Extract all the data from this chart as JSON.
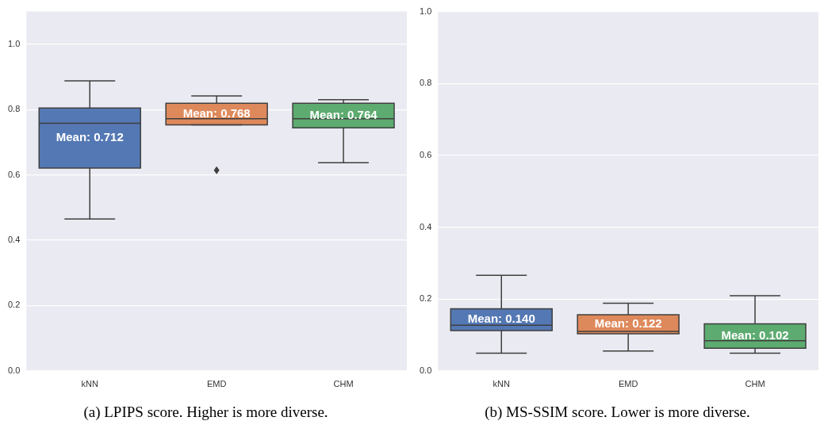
{
  "chart_data": [
    {
      "type": "box",
      "categories": [
        "kNN",
        "EMD",
        "CHM"
      ],
      "colors": [
        "#4c72b0",
        "#dd8452",
        "#55a868"
      ],
      "boxes": [
        {
          "low": 0.465,
          "q1": 0.621,
          "median": 0.758,
          "q3": 0.805,
          "high": 0.888
        },
        {
          "low": 0.753,
          "q1": 0.753,
          "median": 0.772,
          "q3": 0.819,
          "high": 0.842,
          "outliers": [
            0.614
          ]
        },
        {
          "low": 0.637,
          "q1": 0.744,
          "median": 0.772,
          "q3": 0.819,
          "high": 0.83
        }
      ],
      "ylim": [
        0,
        1.1
      ],
      "yticks": [
        {
          "value": 0,
          "label": "0.0"
        },
        {
          "value": 0.2,
          "label": "0.2"
        },
        {
          "value": 0.4,
          "label": "0.4"
        },
        {
          "value": 0.6,
          "label": "0.6"
        },
        {
          "value": 0.8,
          "label": "0.8"
        },
        {
          "value": 1,
          "label": "1.0"
        }
      ],
      "grid": "y",
      "legend": false,
      "annotations": [
        "Mean: 0.712",
        "Mean: 0.768",
        "Mean: 0.764",
        "(a) LPIPS score. Higher is more diverse."
      ]
    },
    {
      "type": "box",
      "categories": [
        "kNN",
        "EMD",
        "CHM"
      ],
      "colors": [
        "#4c72b0",
        "#dd8452",
        "#55a868"
      ],
      "boxes": [
        {
          "low": 0.049,
          "q1": 0.112,
          "median": 0.127,
          "q3": 0.173,
          "high": 0.266
        },
        {
          "low": 0.055,
          "q1": 0.103,
          "median": 0.11,
          "q3": 0.156,
          "high": 0.188
        },
        {
          "low": 0.049,
          "q1": 0.063,
          "median": 0.084,
          "q3": 0.131,
          "high": 0.209
        }
      ],
      "ylim": [
        0,
        1
      ],
      "yticks": [
        {
          "value": 0,
          "label": "0.0"
        },
        {
          "value": 0.2,
          "label": "0.2"
        },
        {
          "value": 0.4,
          "label": "0.4"
        },
        {
          "value": 0.6,
          "label": "0.6"
        },
        {
          "value": 0.8,
          "label": "0.8"
        },
        {
          "value": 1,
          "label": "1.0"
        }
      ],
      "grid": "y",
      "legend": false,
      "annotations": [
        "Mean: 0.140",
        "Mean: 0.122",
        "Mean: 0.102",
        "(b) MS-SSIM score. Lower is more diverse."
      ]
    }
  ]
}
